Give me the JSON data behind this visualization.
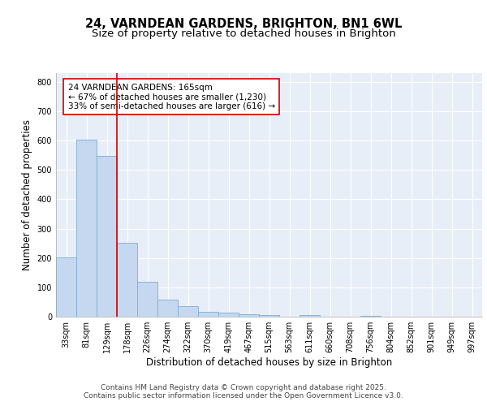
{
  "title1": "24, VARNDEAN GARDENS, BRIGHTON, BN1 6WL",
  "title2": "Size of property relative to detached houses in Brighton",
  "xlabel": "Distribution of detached houses by size in Brighton",
  "ylabel": "Number of detached properties",
  "bar_labels": [
    "33sqm",
    "81sqm",
    "129sqm",
    "178sqm",
    "226sqm",
    "274sqm",
    "322sqm",
    "370sqm",
    "419sqm",
    "467sqm",
    "515sqm",
    "563sqm",
    "611sqm",
    "660sqm",
    "708sqm",
    "756sqm",
    "804sqm",
    "852sqm",
    "901sqm",
    "949sqm",
    "997sqm"
  ],
  "bar_values": [
    203,
    603,
    547,
    252,
    120,
    57,
    37,
    17,
    15,
    9,
    6,
    0,
    5,
    0,
    0,
    4,
    0,
    0,
    0,
    0,
    0
  ],
  "bar_color": "#c5d8f0",
  "bar_edge_color": "#7aadd4",
  "vline_x": 2.5,
  "vline_color": "#cc0000",
  "annotation_text": "24 VARNDEAN GARDENS: 165sqm\n← 67% of detached houses are smaller (1,230)\n33% of semi-detached houses are larger (616) →",
  "annotation_box_facecolor": "#ffffff",
  "annotation_box_edgecolor": "#cc0000",
  "ylim": [
    0,
    830
  ],
  "yticks": [
    0,
    100,
    200,
    300,
    400,
    500,
    600,
    700,
    800
  ],
  "background_color": "#e8eef8",
  "grid_color": "#ffffff",
  "footer": "Contains HM Land Registry data © Crown copyright and database right 2025.\nContains public sector information licensed under the Open Government Licence v3.0.",
  "title1_fontsize": 10.5,
  "title2_fontsize": 9.5,
  "label_fontsize": 8.5,
  "tick_fontsize": 7,
  "annot_fontsize": 7.5,
  "footer_fontsize": 6.5
}
